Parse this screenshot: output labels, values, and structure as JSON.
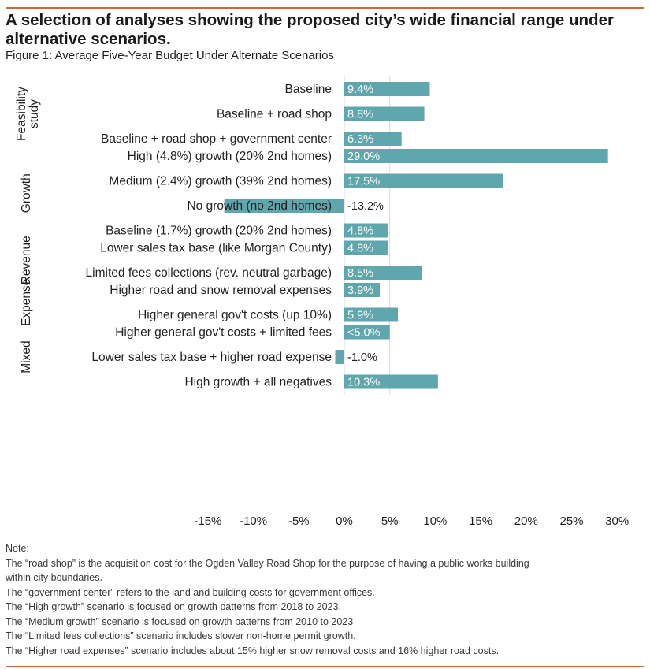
{
  "header": {
    "title": "A selection of analyses showing the proposed city’s wide financial range under alternative scenarios.",
    "subtitle": "Figure 1: Average Five-Year Budget Under Alternate Scenarios"
  },
  "colors": {
    "bar": "#5fa6ad",
    "accent_rule": "#c8693f",
    "text": "#231f20",
    "gridline": "#d9d9d9"
  },
  "chart_data": {
    "type": "bar",
    "orientation": "horizontal",
    "xlim": [
      -15,
      30
    ],
    "x_ticks": [
      "-15%",
      "-10%",
      "-5%",
      "0%",
      "5%",
      "10%",
      "15%",
      "20%",
      "25%",
      "30%"
    ],
    "x_tick_values": [
      -15,
      -10,
      -5,
      0,
      5,
      10,
      15,
      20,
      25,
      30
    ],
    "groups": [
      {
        "label": "Feasibility study",
        "label_lines": [
          "Feasibility",
          "study"
        ],
        "items": [
          {
            "category": "Baseline",
            "value": 9.4,
            "data_label": "9.4%"
          },
          {
            "category": "Baseline + road shop",
            "value": 8.8,
            "data_label": "8.8%"
          },
          {
            "category": "Baseline + road shop + government center",
            "value": 6.3,
            "data_label": "6.3%"
          }
        ]
      },
      {
        "label": "Growth",
        "label_lines": [
          "Growth"
        ],
        "items": [
          {
            "category": "High (4.8%) growth (20% 2nd homes)",
            "value": 29.0,
            "data_label": "29.0%"
          },
          {
            "category": "Medium (2.4%) growth (39% 2nd homes)",
            "value": 17.5,
            "data_label": "17.5%"
          },
          {
            "category": "No growth (no 2nd homes)",
            "value": -13.2,
            "data_label": "-13.2%"
          },
          {
            "category": "Baseline (1.7%) growth (20% 2nd homes)",
            "value": 4.8,
            "data_label": "4.8%"
          }
        ]
      },
      {
        "label": "Revenue",
        "label_lines": [
          "Revenue"
        ],
        "items": [
          {
            "category": "Lower sales tax base (like Morgan County)",
            "value": 4.8,
            "data_label": "4.8%"
          },
          {
            "category": "Limited fees collections (rev. neutral garbage)",
            "value": 8.5,
            "data_label": "8.5%"
          }
        ]
      },
      {
        "label": "Expense",
        "label_lines": [
          "Expense"
        ],
        "items": [
          {
            "category": "Higher road and snow removal expenses",
            "value": 3.9,
            "data_label": "3.9%"
          },
          {
            "category": "Higher general gov't costs (up 10%)",
            "value": 5.9,
            "data_label": "5.9%"
          }
        ]
      },
      {
        "label": "Mixed",
        "label_lines": [
          "Mixed"
        ],
        "items": [
          {
            "category": "Higher general gov't costs + limited fees",
            "value": 5.0,
            "data_label": "<5.0%"
          },
          {
            "category": "Lower sales tax base + higher road expense",
            "value": -1.0,
            "data_label": "-1.0%"
          },
          {
            "category": "High growth + all negatives",
            "value": 10.3,
            "data_label": "10.3%"
          }
        ]
      }
    ]
  },
  "notes": {
    "heading": "Note:",
    "lines": [
      "The “road shop” is the acquisition cost for the Ogden Valley Road Shop for the purpose of having a public works building",
      "within city boundaries.",
      "The “government center” refers to the land and building costs for government offices.",
      "The “High growth” scenario is focused on growth patterns from 2018 to 2023.",
      "The “Medium growth” scenario is focused on growth patterns from 2010 to 2023",
      "The “Limited fees collections” scenario includes slower non-home permit growth.",
      "The “Higher road expenses” scenario includes about 15% higher snow removal costs and 16% higher road costs."
    ]
  }
}
